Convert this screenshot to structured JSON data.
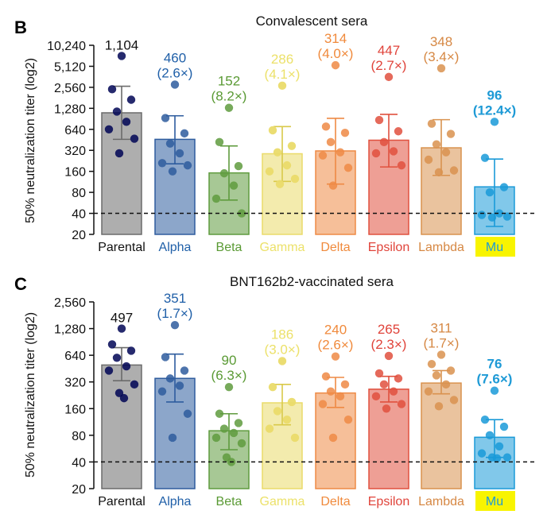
{
  "colors": {
    "Parental": "#6b6b6b",
    "Alpha": "#2e5c9e",
    "Beta": "#5f9b3e",
    "Gamma": "#eadb6a",
    "Delta": "#ee8a45",
    "Epsilon": "#e0503e",
    "Lambda": "#d9924f",
    "Mu": "#1a9ad8",
    "highlight": "#f8f400",
    "Parental_label": "#111111",
    "Alpha_label": "#1f5fa8",
    "Beta_label": "#5a9a34",
    "Gamma_label": "#ece16a",
    "Delta_label": "#f08a3c",
    "Epsilon_label": "#e0433a",
    "Lambda_label": "#d68844",
    "Mu_label": "#1e9ad6"
  },
  "chart_data": [
    {
      "type": "bar",
      "panel_letter": "B",
      "title": "Convalescent sera",
      "ylabel": "50% neutralization titer (log2)",
      "yscale": "log2",
      "ylim": [
        20,
        10240
      ],
      "yticks": [
        20,
        40,
        80,
        160,
        320,
        640,
        1280,
        2560,
        5120,
        10240
      ],
      "ytick_labels": [
        "20",
        "40",
        "80",
        "160",
        "320",
        "640",
        "1,280",
        "2,560",
        "5,120",
        "10,240"
      ],
      "threshold": 40,
      "categories": [
        "Parental",
        "Alpha",
        "Beta",
        "Gamma",
        "Delta",
        "Epsilon",
        "Lambda",
        "Mu"
      ],
      "highlighted_category": "Mu",
      "values": [
        1104,
        460,
        152,
        286,
        314,
        447,
        348,
        96
      ],
      "value_labels": [
        "1,104",
        "460",
        "152",
        "286",
        "314",
        "447",
        "348",
        "96"
      ],
      "fold_labels": [
        "",
        "(2.6×)",
        "(8.2×)",
        "(4.1×)",
        "(4.0×)",
        "(2.7×)",
        "(3.4×)",
        "(12.4×)"
      ],
      "errors_low": [
        460,
        205,
        62,
        115,
        105,
        185,
        140,
        26
      ],
      "errors_high": [
        2650,
        1000,
        370,
        700,
        920,
        1050,
        880,
        240
      ],
      "points": [
        [
          7200,
          2400,
          1700,
          1150,
          820,
          640,
          470,
          290
        ],
        [
          2800,
          930,
          560,
          400,
          290,
          210,
          195,
          160
        ],
        [
          1300,
          420,
          190,
          150,
          100,
          65,
          40
        ],
        [
          2700,
          620,
          370,
          300,
          195,
          160,
          125,
          105
        ],
        [
          5300,
          700,
          570,
          420,
          300,
          270,
          180,
          100
        ],
        [
          3600,
          870,
          600,
          420,
          310,
          290,
          195
        ],
        [
          4800,
          770,
          550,
          390,
          300,
          235,
          165,
          155
        ],
        [
          820,
          250,
          95,
          80,
          40,
          38,
          36,
          35
        ]
      ]
    },
    {
      "type": "bar",
      "panel_letter": "C",
      "title": "BNT162b2-vaccinated sera",
      "ylabel": "50% neutralization titer (log2)",
      "yscale": "log2",
      "ylim": [
        20,
        2560
      ],
      "yticks": [
        20,
        40,
        80,
        160,
        320,
        640,
        1280,
        2560
      ],
      "ytick_labels": [
        "20",
        "40",
        "80",
        "160",
        "320",
        "640",
        "1,280",
        "2,560"
      ],
      "threshold": 40,
      "categories": [
        "Parental",
        "Alpha",
        "Beta",
        "Gamma",
        "Delta",
        "Epsilon",
        "Lambda",
        "Mu"
      ],
      "highlighted_category": "Mu",
      "values": [
        497,
        351,
        90,
        186,
        240,
        265,
        311,
        76
      ],
      "value_labels": [
        "497",
        "351",
        "90",
        "186",
        "240",
        "265",
        "311",
        "76"
      ],
      "fold_labels": [
        "",
        "(1.7×)",
        "(6.3×)",
        "(3.0×)",
        "(2.6×)",
        "(2.3×)",
        "(1.7×)",
        "(7.6×)"
      ],
      "errors_low": [
        330,
        190,
        55,
        105,
        165,
        190,
        235,
        45
      ],
      "errors_high": [
        780,
        660,
        140,
        300,
        360,
        370,
        430,
        120
      ],
      "points": [
        [
          1280,
          850,
          720,
          600,
          480,
          430,
          300,
          240,
          210
        ],
        [
          1400,
          610,
          430,
          350,
          290,
          250,
          140,
          75
        ],
        [
          280,
          140,
          110,
          95,
          85,
          75,
          65,
          45,
          40
        ],
        [
          550,
          280,
          190,
          150,
          120,
          95,
          75
        ],
        [
          620,
          370,
          300,
          250,
          220,
          180,
          120,
          75
        ],
        [
          630,
          400,
          350,
          300,
          250,
          220,
          180,
          160
        ],
        [
          650,
          510,
          430,
          380,
          300,
          250,
          200,
          170
        ],
        [
          255,
          120,
          100,
          80,
          60,
          50,
          45,
          45,
          44
        ]
      ]
    }
  ]
}
